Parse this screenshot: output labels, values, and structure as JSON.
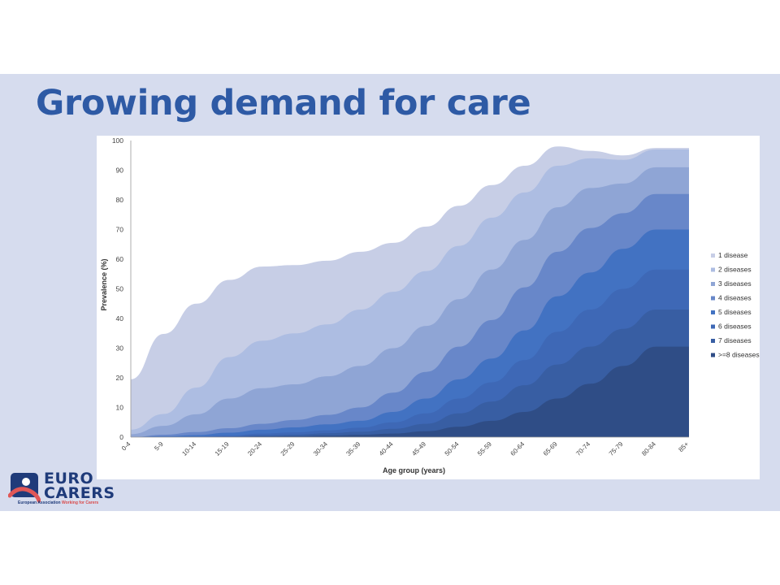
{
  "slide": {
    "title": "Growing demand for care"
  },
  "logo": {
    "line1": "EURO",
    "line2": "CARERS",
    "sub1": "European Association",
    "sub2": "Working for Carers"
  },
  "chart_data": {
    "type": "area",
    "stacked": true,
    "xlabel": "Age group (years)",
    "ylabel": "Prevalence (%)",
    "ylim": [
      0,
      100
    ],
    "yticks": [
      0,
      10,
      20,
      30,
      40,
      50,
      60,
      70,
      80,
      90,
      100
    ],
    "grid": false,
    "legend_position": "right",
    "categories": [
      "0-4",
      "5-9",
      "10-14",
      "15-19",
      "20-24",
      "25-29",
      "30-34",
      "35-39",
      "40-44",
      "45-49",
      "50-54",
      "55-59",
      "60-64",
      "65-69",
      "70-74",
      "75-79",
      "80-84",
      "85+"
    ],
    "series": [
      {
        "name": ">=8 diseases",
        "color": "#2f4d86",
        "values": [
          0,
          0,
          0,
          0,
          0.2,
          0.3,
          0.5,
          0.8,
          1.2,
          2,
          3.5,
          5.5,
          8.5,
          13,
          18,
          24,
          30.5,
          30.5
        ]
      },
      {
        "name": "7 diseases",
        "color": "#385ea3",
        "values": [
          0,
          0,
          0,
          0.2,
          0.4,
          0.5,
          0.8,
          1,
          1.6,
          2.5,
          4.5,
          6.5,
          9,
          11.5,
          12.5,
          12.5,
          12.5,
          12.5
        ]
      },
      {
        "name": "6 diseases",
        "color": "#3e68b6",
        "values": [
          0,
          0,
          0.2,
          0.3,
          0.6,
          0.8,
          1,
          1.4,
          2.2,
          3.5,
          5,
          6.5,
          8.5,
          11,
          12.5,
          13.5,
          13.5,
          13.5
        ]
      },
      {
        "name": "5 diseases",
        "color": "#4272c2",
        "values": [
          0,
          0.3,
          0.5,
          1,
          1.3,
          1.7,
          2,
          2.3,
          3.5,
          5,
          6.5,
          8,
          10,
          12,
          12.5,
          13.5,
          13.5,
          13.5
        ]
      },
      {
        "name": "4 diseases",
        "color": "#6887c9",
        "values": [
          0,
          0.5,
          1,
          1.5,
          2,
          2.5,
          3.2,
          4.5,
          6.5,
          9,
          11,
          13,
          14.5,
          15,
          15,
          12,
          12,
          12
        ]
      },
      {
        "name": "3 diseases",
        "color": "#8fa5d5",
        "values": [
          1,
          3,
          6,
          10,
          12,
          12,
          13,
          14,
          15,
          15.5,
          16,
          17,
          16,
          15,
          13.5,
          10,
          9,
          9
        ]
      },
      {
        "name": "2 diseases",
        "color": "#adbde2",
        "values": [
          1.5,
          4,
          9,
          14,
          16,
          17.2,
          17.5,
          19,
          19,
          18.5,
          18,
          17.5,
          16,
          14,
          10,
          8,
          6,
          6
        ]
      },
      {
        "name": "1 disease",
        "color": "#c7cee6",
        "values": [
          17,
          27,
          28.3,
          26,
          25,
          23,
          21.5,
          19.5,
          16.5,
          15,
          13.5,
          11,
          9,
          6.5,
          2.5,
          1.5,
          0.5,
          0.5
        ]
      }
    ]
  }
}
